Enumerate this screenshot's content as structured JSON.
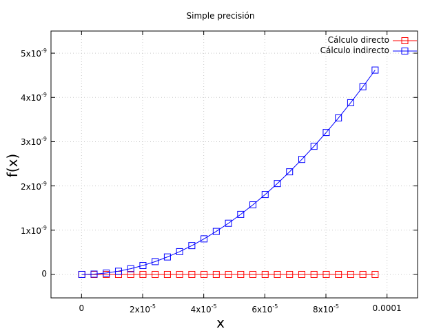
{
  "chart_data": {
    "type": "line",
    "title": "Simple precisión",
    "xlabel": "x",
    "ylabel": "f(x)",
    "xlim": [
      -1e-05,
      0.00011
    ],
    "ylim": [
      -5.3e-10,
      5.5e-09
    ],
    "grid": true,
    "legend_position": "top-right",
    "x_ticks": [
      {
        "value": 0,
        "base": "0",
        "exp": ""
      },
      {
        "value": 2e-05,
        "base": "2x10",
        "exp": "-5"
      },
      {
        "value": 4e-05,
        "base": "4x10",
        "exp": "-5"
      },
      {
        "value": 6e-05,
        "base": "6x10",
        "exp": "-5"
      },
      {
        "value": 8e-05,
        "base": "8x10",
        "exp": "-5"
      },
      {
        "value": 0.0001,
        "base": "0.0001",
        "exp": ""
      }
    ],
    "y_ticks": [
      {
        "value": 0,
        "base": "0",
        "exp": ""
      },
      {
        "value": 1e-09,
        "base": "1x10",
        "exp": "-9"
      },
      {
        "value": 2e-09,
        "base": "2x10",
        "exp": "-9"
      },
      {
        "value": 3e-09,
        "base": "3x10",
        "exp": "-9"
      },
      {
        "value": 4e-09,
        "base": "4x10",
        "exp": "-9"
      },
      {
        "value": 5e-09,
        "base": "5x10",
        "exp": "-9"
      }
    ],
    "x": [
      1e-07,
      4.1e-06,
      8.1e-06,
      1.21e-05,
      1.61e-05,
      2.01e-05,
      2.41e-05,
      2.81e-05,
      3.21e-05,
      3.61e-05,
      4.01e-05,
      4.41e-05,
      4.81e-05,
      5.21e-05,
      5.61e-05,
      6.01e-05,
      6.41e-05,
      6.81e-05,
      7.21e-05,
      7.61e-05,
      8.01e-05,
      8.41e-05,
      8.81e-05,
      9.21e-05,
      9.61e-05
    ],
    "series": [
      {
        "name": "Cálculo directo",
        "color": "#ff0000",
        "marker": "square",
        "values": [
          0,
          0,
          0,
          0,
          0,
          0,
          0,
          0,
          0,
          0,
          0,
          0,
          0,
          0,
          0,
          0,
          0,
          0,
          0,
          0,
          0,
          0,
          0,
          0,
          0
        ]
      },
      {
        "name": "Cálculo indirecto",
        "color": "#0000ff",
        "marker": "square",
        "values": [
          0,
          8e-12,
          3.2e-11,
          7.3e-11,
          1.3e-10,
          2.02e-10,
          2.9e-10,
          3.95e-10,
          5.15e-10,
          6.52e-10,
          8.04e-10,
          9.72e-10,
          1.157e-09,
          1.357e-09,
          1.573e-09,
          1.806e-09,
          2.054e-09,
          2.319e-09,
          2.599e-09,
          2.896e-09,
          3.208e-09,
          3.536e-09,
          3.881e-09,
          4.241e-09,
          4.618e-09
        ]
      }
    ]
  }
}
